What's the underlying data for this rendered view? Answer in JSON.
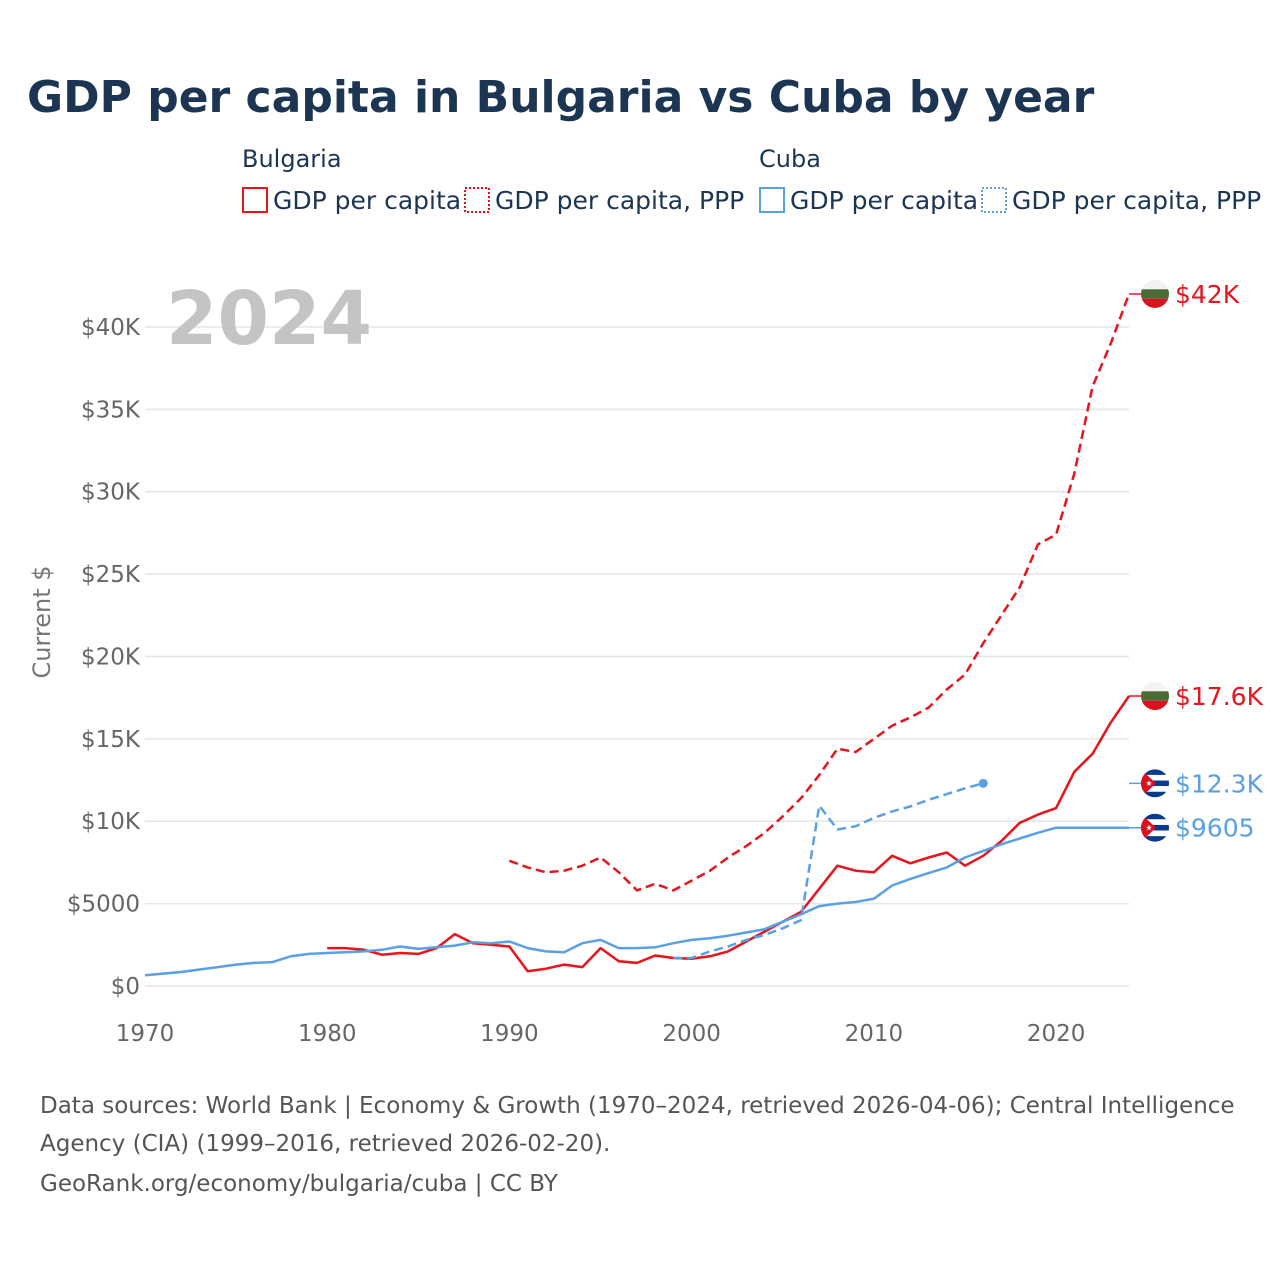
{
  "title": "GDP per capita in Bulgaria vs Cuba by year",
  "legend": {
    "groups": [
      {
        "name": "Bulgaria",
        "items": [
          "GDP per capita",
          "GDP per capita, PPP"
        ]
      },
      {
        "name": "Cuba",
        "items": [
          "GDP per capita",
          "GDP per capita, PPP"
        ]
      }
    ]
  },
  "year_label": "2024",
  "colors": {
    "bulgaria": "#e8141c",
    "cuba": "#5aa0e2",
    "grid": "#e6e6e6",
    "title": "#1b3553",
    "tick": "#666666"
  },
  "source": {
    "line1": "Data sources: World Bank | Economy & Growth (1970–2024, retrieved 2026-04-06); Central Intelligence",
    "line2": "Agency (CIA) (1999–2016, retrieved 2026-02-20).",
    "line3": "GeoRank.org/economy/bulgaria/cuba | CC BY"
  },
  "chart_data": {
    "type": "line",
    "title": "GDP per capita in Bulgaria vs Cuba by year",
    "xlabel": "",
    "ylabel": "Current $",
    "xlim": [
      1970,
      2024
    ],
    "ylim": [
      0,
      42000
    ],
    "x_ticks": [
      1970,
      1980,
      1990,
      2000,
      2010,
      2020
    ],
    "x_tick_labels": [
      "1970",
      "1980",
      "1990",
      "2000",
      "2010",
      "2020"
    ],
    "y_ticks": [
      0,
      5000,
      10000,
      15000,
      20000,
      25000,
      30000,
      35000,
      40000
    ],
    "y_tick_labels": [
      "$0",
      "$5000",
      "$10K",
      "$15K",
      "$20K",
      "$25K",
      "$30K",
      "$35K",
      "$40K"
    ],
    "grid": true,
    "series": [
      {
        "name": "Bulgaria GDP per capita",
        "country": "bulgaria",
        "style": "solid",
        "end_label": "$17.6K",
        "points": [
          [
            1980,
            2300
          ],
          [
            1981,
            2300
          ],
          [
            1982,
            2200
          ],
          [
            1983,
            1900
          ],
          [
            1984,
            2000
          ],
          [
            1985,
            1950
          ],
          [
            1986,
            2300
          ],
          [
            1987,
            3150
          ],
          [
            1988,
            2600
          ],
          [
            1989,
            2500
          ],
          [
            1990,
            2400
          ],
          [
            1991,
            900
          ],
          [
            1992,
            1050
          ],
          [
            1993,
            1300
          ],
          [
            1994,
            1150
          ],
          [
            1995,
            2300
          ],
          [
            1996,
            1500
          ],
          [
            1997,
            1400
          ],
          [
            1998,
            1850
          ],
          [
            1999,
            1700
          ],
          [
            2000,
            1650
          ],
          [
            2001,
            1800
          ],
          [
            2002,
            2100
          ],
          [
            2003,
            2700
          ],
          [
            2004,
            3300
          ],
          [
            2005,
            3900
          ],
          [
            2006,
            4500
          ],
          [
            2007,
            5900
          ],
          [
            2008,
            7300
          ],
          [
            2009,
            7000
          ],
          [
            2010,
            6900
          ],
          [
            2011,
            7900
          ],
          [
            2012,
            7450
          ],
          [
            2013,
            7800
          ],
          [
            2014,
            8100
          ],
          [
            2015,
            7300
          ],
          [
            2016,
            7900
          ],
          [
            2017,
            8800
          ],
          [
            2018,
            9900
          ],
          [
            2019,
            10400
          ],
          [
            2020,
            10800
          ],
          [
            2021,
            13000
          ],
          [
            2022,
            14100
          ],
          [
            2023,
            16000
          ],
          [
            2024,
            17600
          ]
        ]
      },
      {
        "name": "Bulgaria GDP per capita, PPP",
        "country": "bulgaria",
        "style": "dashed",
        "end_label": "$42K",
        "points": [
          [
            1990,
            7600
          ],
          [
            1991,
            7200
          ],
          [
            1992,
            6900
          ],
          [
            1993,
            7000
          ],
          [
            1994,
            7300
          ],
          [
            1995,
            7800
          ],
          [
            1996,
            6900
          ],
          [
            1997,
            5800
          ],
          [
            1998,
            6200
          ],
          [
            1999,
            5800
          ],
          [
            2000,
            6400
          ],
          [
            2001,
            7000
          ],
          [
            2002,
            7800
          ],
          [
            2003,
            8500
          ],
          [
            2004,
            9300
          ],
          [
            2005,
            10300
          ],
          [
            2006,
            11400
          ],
          [
            2007,
            12800
          ],
          [
            2008,
            14400
          ],
          [
            2009,
            14200
          ],
          [
            2010,
            15000
          ],
          [
            2011,
            15800
          ],
          [
            2012,
            16300
          ],
          [
            2013,
            16900
          ],
          [
            2014,
            18000
          ],
          [
            2015,
            18900
          ],
          [
            2016,
            20800
          ],
          [
            2017,
            22500
          ],
          [
            2018,
            24200
          ],
          [
            2019,
            26800
          ],
          [
            2020,
            27400
          ],
          [
            2021,
            31100
          ],
          [
            2022,
            36400
          ],
          [
            2023,
            39000
          ],
          [
            2024,
            42000
          ]
        ]
      },
      {
        "name": "Cuba GDP per capita",
        "country": "cuba",
        "style": "solid",
        "end_label": "$9605",
        "points": [
          [
            1970,
            650
          ],
          [
            1971,
            750
          ],
          [
            1972,
            850
          ],
          [
            1973,
            1000
          ],
          [
            1974,
            1150
          ],
          [
            1975,
            1300
          ],
          [
            1976,
            1400
          ],
          [
            1977,
            1450
          ],
          [
            1978,
            1800
          ],
          [
            1979,
            1950
          ],
          [
            1980,
            2000
          ],
          [
            1981,
            2050
          ],
          [
            1982,
            2100
          ],
          [
            1983,
            2200
          ],
          [
            1984,
            2400
          ],
          [
            1985,
            2250
          ],
          [
            1986,
            2350
          ],
          [
            1987,
            2450
          ],
          [
            1988,
            2650
          ],
          [
            1989,
            2600
          ],
          [
            1990,
            2700
          ],
          [
            1991,
            2300
          ],
          [
            1992,
            2100
          ],
          [
            1993,
            2050
          ],
          [
            1994,
            2600
          ],
          [
            1995,
            2800
          ],
          [
            1996,
            2300
          ],
          [
            1997,
            2300
          ],
          [
            1998,
            2350
          ],
          [
            1999,
            2600
          ],
          [
            2000,
            2800
          ],
          [
            2001,
            2900
          ],
          [
            2002,
            3050
          ],
          [
            2003,
            3250
          ],
          [
            2004,
            3450
          ],
          [
            2005,
            3900
          ],
          [
            2006,
            4350
          ],
          [
            2007,
            4850
          ],
          [
            2008,
            5000
          ],
          [
            2009,
            5100
          ],
          [
            2010,
            5300
          ],
          [
            2011,
            6100
          ],
          [
            2012,
            6500
          ],
          [
            2013,
            6850
          ],
          [
            2014,
            7200
          ],
          [
            2015,
            7800
          ],
          [
            2016,
            8200
          ],
          [
            2017,
            8600
          ],
          [
            2018,
            8950
          ],
          [
            2019,
            9300
          ],
          [
            2020,
            9605
          ],
          [
            2024,
            9605
          ]
        ]
      },
      {
        "name": "Cuba GDP per capita, PPP",
        "country": "cuba",
        "style": "dashed",
        "end_label": "$12.3K",
        "points": [
          [
            1999,
            1700
          ],
          [
            2000,
            1700
          ],
          [
            2001,
            2100
          ],
          [
            2002,
            2400
          ],
          [
            2003,
            2800
          ],
          [
            2004,
            3100
          ],
          [
            2005,
            3500
          ],
          [
            2006,
            4000
          ],
          [
            2007,
            10950
          ],
          [
            2008,
            9500
          ],
          [
            2009,
            9700
          ],
          [
            2010,
            10200
          ],
          [
            2011,
            10600
          ],
          [
            2012,
            10900
          ],
          [
            2013,
            11300
          ],
          [
            2014,
            11650
          ],
          [
            2015,
            12000
          ],
          [
            2016,
            12300
          ]
        ],
        "extension_to": 2024
      }
    ]
  }
}
